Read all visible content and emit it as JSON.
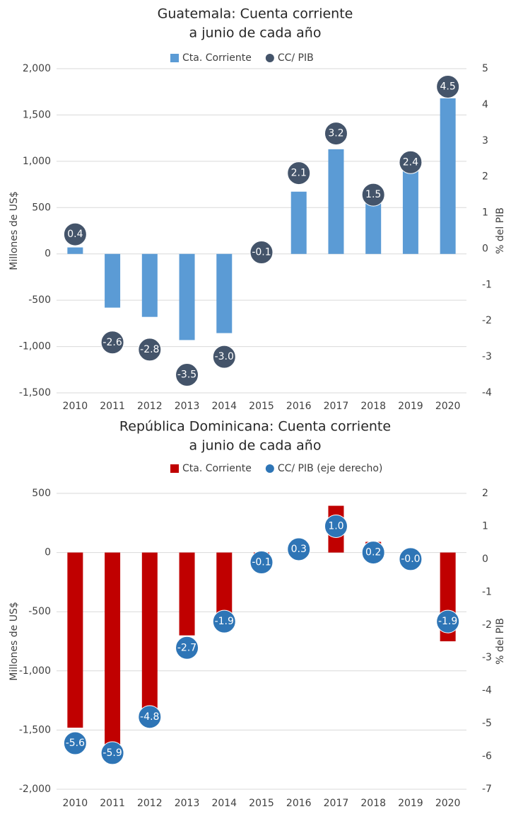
{
  "chart_data": [
    {
      "type": "bar",
      "title": [
        "Guatemala: Cuenta corriente",
        "a junio de cada año"
      ],
      "ylabel": "Millones de US$",
      "y2label": "% del PIB",
      "categories": [
        "2010",
        "2011",
        "2012",
        "2013",
        "2014",
        "2015",
        "2016",
        "2017",
        "2018",
        "2019",
        "2020"
      ],
      "series": [
        {
          "name": "Cta. Corriente",
          "color": "#5b9bd5",
          "values": [
            70,
            -580,
            -680,
            -930,
            -855,
            10,
            672,
            1130,
            560,
            900,
            1680
          ]
        },
        {
          "name": "CC/ PIB",
          "color": "#44546a",
          "axis": "y2",
          "values": [
            0.4,
            -2.6,
            -2.8,
            -3.5,
            -3.0,
            -0.1,
            2.1,
            3.2,
            1.5,
            2.4,
            4.5
          ],
          "value_labels": [
            "0.4",
            "-2.6",
            "-2.8",
            "-3.5",
            "-3.0",
            "-0.1",
            "2.1",
            "3.2",
            "1.5",
            "2.4",
            "4.5"
          ]
        }
      ],
      "ylim": [
        -1500,
        2000
      ],
      "yticks": [
        {
          "value": -1500,
          "label": "-1,500"
        },
        {
          "value": -1000,
          "label": "-1,000"
        },
        -500,
        0,
        500,
        {
          "value": 1000,
          "label": "1,000"
        },
        {
          "value": 1500,
          "label": "1,500"
        },
        {
          "value": 2000,
          "label": "2,000"
        }
      ],
      "y2lim": [
        -4,
        5
      ],
      "y2ticks": [
        -4,
        -3,
        -2,
        -1,
        0,
        1,
        2,
        3,
        4,
        5
      ],
      "grid": true,
      "legend": "top"
    },
    {
      "type": "bar",
      "title": [
        "República Dominicana: Cuenta corriente",
        "a junio de cada año"
      ],
      "ylabel": "Millones de US$",
      "y2label": "% del PIB",
      "categories": [
        "2010",
        "2011",
        "2012",
        "2013",
        "2014",
        "2015",
        "2016",
        "2017",
        "2018",
        "2019",
        "2020"
      ],
      "series": [
        {
          "name": "Cta. Corriente",
          "color": "#c00000",
          "values": [
            -1480,
            -1680,
            -1320,
            -700,
            -540,
            -30,
            10,
            395,
            90,
            0,
            -750
          ]
        },
        {
          "name": "CC/ PIB (eje derecho)",
          "color": "#2e75b6",
          "axis": "y2",
          "values": [
            -5.6,
            -5.9,
            -4.8,
            -2.7,
            -1.9,
            -0.1,
            0.3,
            1.0,
            0.2,
            -0.0,
            -1.9
          ],
          "value_labels": [
            "-5.6",
            "-5.9",
            "-4.8",
            "-2.7",
            "-1.9",
            "-0.1",
            "0.3",
            "1.0",
            "0.2",
            "-0.0",
            "-1.9"
          ]
        }
      ],
      "ylim": [
        -2000,
        500
      ],
      "yticks": [
        {
          "value": -2000,
          "label": "-2,000"
        },
        {
          "value": -1500,
          "label": "-1,500"
        },
        {
          "value": -1000,
          "label": "-1,000"
        },
        -500,
        0,
        500
      ],
      "y2lim": [
        -7,
        2
      ],
      "y2ticks": [
        -7,
        -6,
        -5,
        -4,
        -3,
        -2,
        -1,
        0,
        1,
        2
      ],
      "grid": true,
      "legend": "top"
    }
  ]
}
